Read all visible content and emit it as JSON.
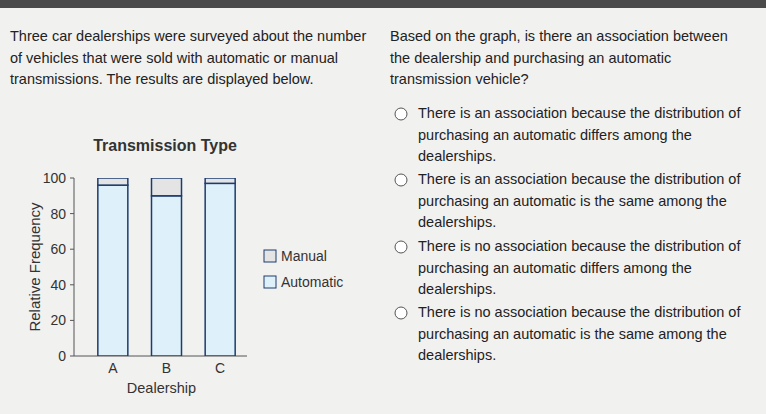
{
  "problem": {
    "text": "Three car dealerships were surveyed about the number of vehicles that were sold with automatic or manual transmissions. The results are displayed below.",
    "question": "Based on the graph, is there an association between the dealership and purchasing an automatic transmission vehicle?",
    "options": [
      "There is an association because the distribution of purchasing an automatic differs among the dealerships.",
      "There is an association because the distribution of purchasing an automatic is the same among the dealerships.",
      "There is no association because the distribution of purchasing an automatic differs among the dealerships.",
      "There is no association because the distribution of purchasing an automatic is the same among the dealerships."
    ]
  },
  "chart_data": {
    "type": "bar",
    "title": "Transmission Type",
    "x_label": "Dealership",
    "y_label": "Relative Frequency",
    "categories": [
      "A",
      "B",
      "C"
    ],
    "series": [
      {
        "name": "Manual",
        "color": "#e4e4e4",
        "values": [
          4,
          10,
          3
        ]
      },
      {
        "name": "Automatic",
        "color": "#def0f9",
        "values": [
          96,
          90,
          97
        ]
      }
    ],
    "ylim": [
      0,
      100
    ],
    "yticks": [
      0,
      20,
      40,
      60,
      80,
      100
    ],
    "stacked": true,
    "grid": false,
    "legend": "right"
  }
}
